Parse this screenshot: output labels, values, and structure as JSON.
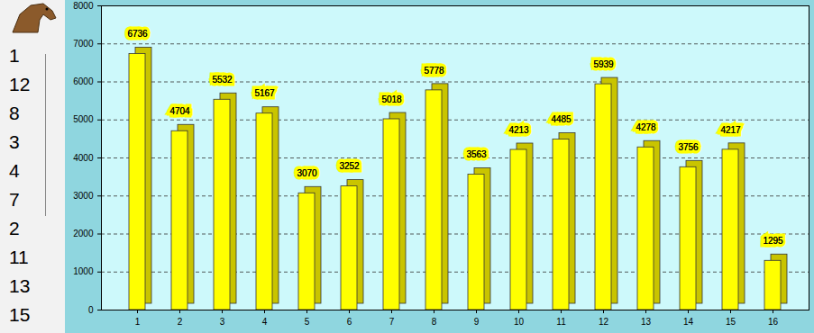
{
  "chart_data": {
    "type": "bar",
    "categories": [
      "1",
      "2",
      "3",
      "4",
      "5",
      "6",
      "7",
      "8",
      "9",
      "10",
      "11",
      "12",
      "13",
      "14",
      "15",
      "16"
    ],
    "values": [
      6736,
      4704,
      5532,
      5167,
      3070,
      3252,
      5018,
      5778,
      3563,
      4213,
      4485,
      5939,
      4278,
      3756,
      4217,
      1295
    ],
    "color": "#ffff00",
    "ylim": [
      0,
      8000
    ],
    "yticks": [
      0,
      1000,
      2000,
      3000,
      4000,
      5000,
      6000,
      7000,
      8000
    ],
    "grid": true,
    "data_labels": true
  },
  "ranking": [
    1,
    12,
    8,
    3,
    4,
    7,
    2,
    11,
    13,
    15
  ]
}
